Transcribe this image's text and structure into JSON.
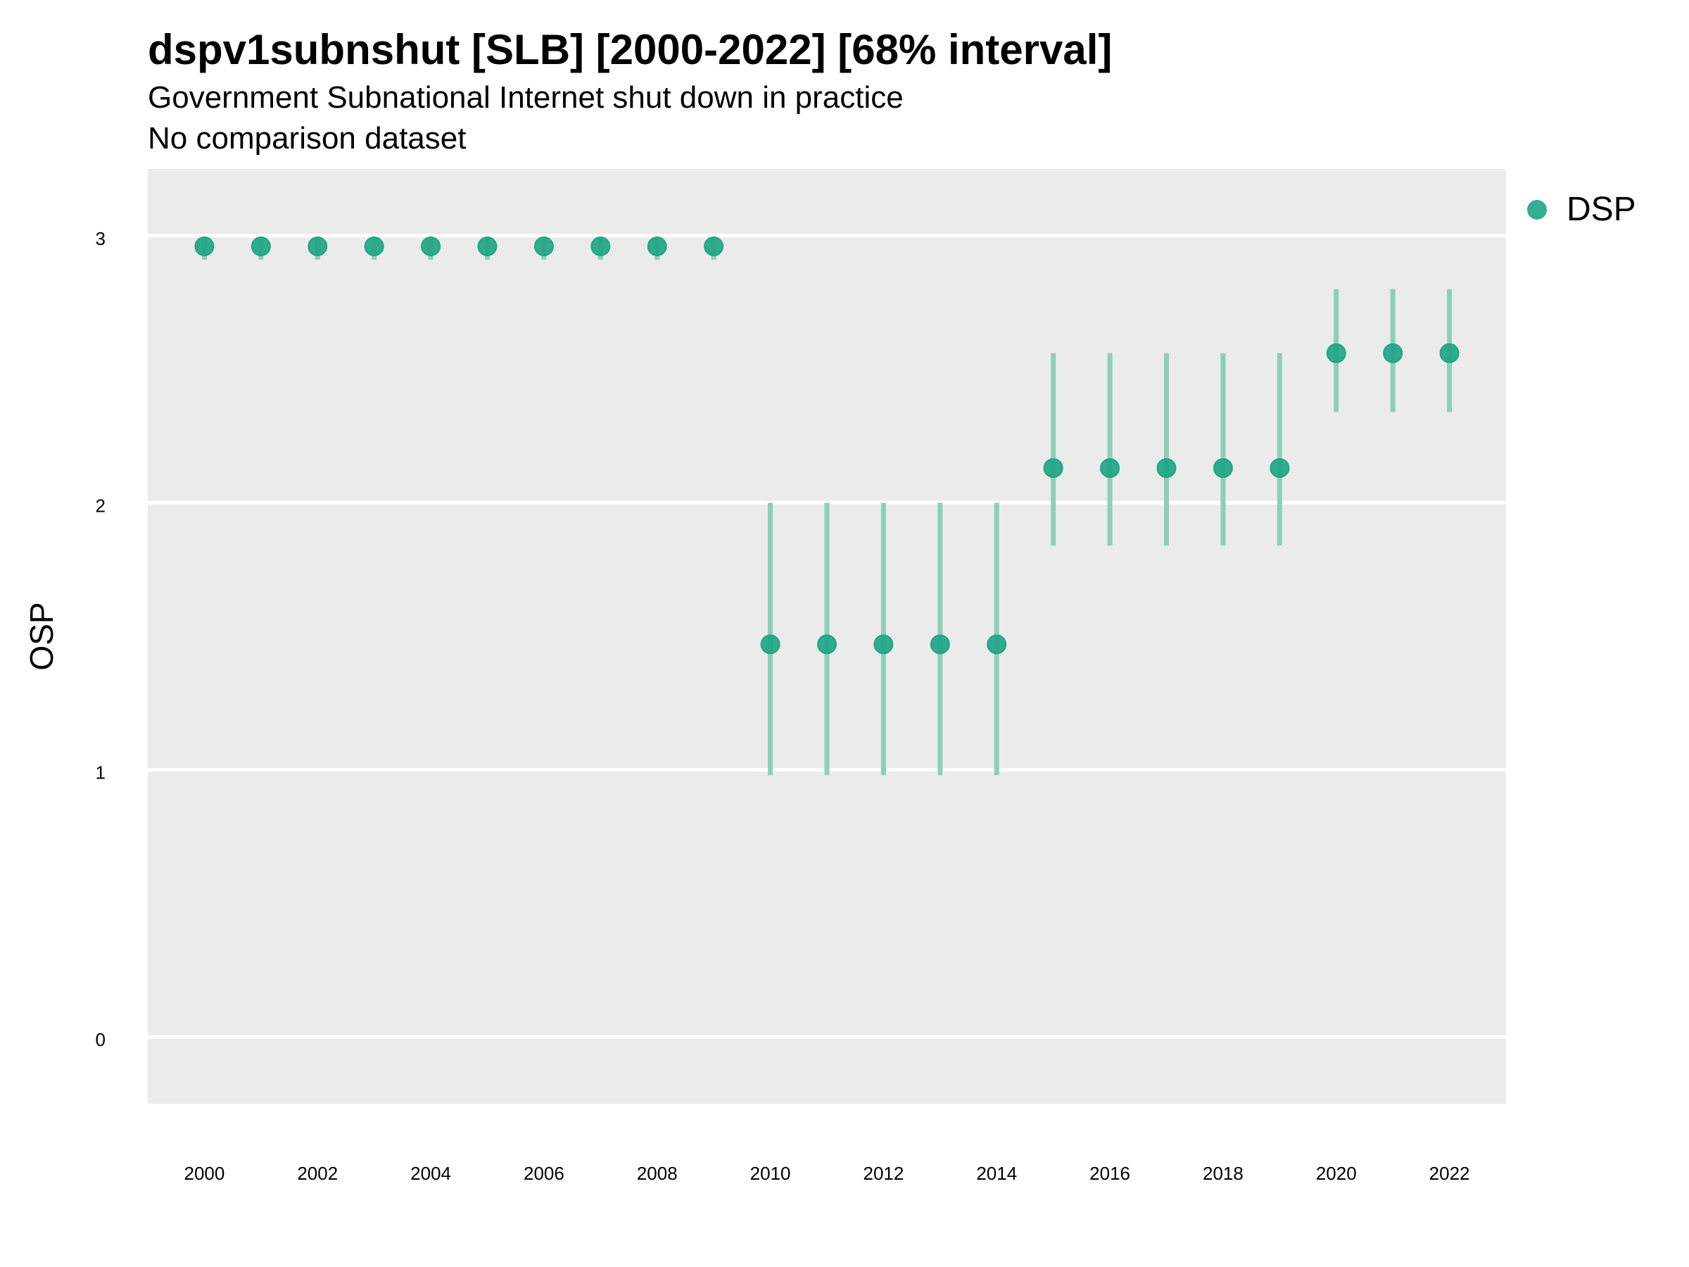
{
  "title": "dspv1subnshut [SLB] [2000-2022] [68% interval]",
  "subtitle": "Government Subnational Internet shut down in practice",
  "caption": "No comparison dataset",
  "colors": {
    "panel": "#ebebeb",
    "grid": "#ffffff",
    "point": "#1fa584",
    "interval": "#8ccfb9"
  },
  "chart_data": {
    "type": "scatter",
    "xlabel": "",
    "ylabel": "OSP",
    "xlim": [
      1999,
      2023
    ],
    "ylim": [
      -0.25,
      3.25
    ],
    "x_ticks": [
      2000,
      2002,
      2004,
      2006,
      2008,
      2010,
      2012,
      2014,
      2016,
      2018,
      2020,
      2022
    ],
    "y_ticks": [
      0,
      1,
      2,
      3
    ],
    "grid": true,
    "legend_position": "right-top",
    "series": [
      {
        "name": "DSP",
        "x": [
          2000,
          2001,
          2002,
          2003,
          2004,
          2005,
          2006,
          2007,
          2008,
          2009,
          2010,
          2011,
          2012,
          2013,
          2014,
          2015,
          2016,
          2017,
          2018,
          2019,
          2020,
          2021,
          2022
        ],
        "y": [
          2.96,
          2.96,
          2.96,
          2.96,
          2.96,
          2.96,
          2.96,
          2.96,
          2.96,
          2.96,
          1.47,
          1.47,
          1.47,
          1.47,
          1.47,
          2.13,
          2.13,
          2.13,
          2.13,
          2.13,
          2.56,
          2.56,
          2.56
        ],
        "lower": [
          2.91,
          2.91,
          2.91,
          2.91,
          2.91,
          2.91,
          2.91,
          2.91,
          2.91,
          2.91,
          0.98,
          0.98,
          0.98,
          0.98,
          0.98,
          1.84,
          1.84,
          1.84,
          1.84,
          1.84,
          2.34,
          2.34,
          2.34
        ],
        "upper": [
          2.99,
          2.99,
          2.99,
          2.99,
          2.99,
          2.99,
          2.99,
          2.99,
          2.99,
          2.99,
          2.0,
          2.0,
          2.0,
          2.0,
          2.0,
          2.56,
          2.56,
          2.56,
          2.56,
          2.56,
          2.8,
          2.8,
          2.8
        ]
      }
    ]
  }
}
